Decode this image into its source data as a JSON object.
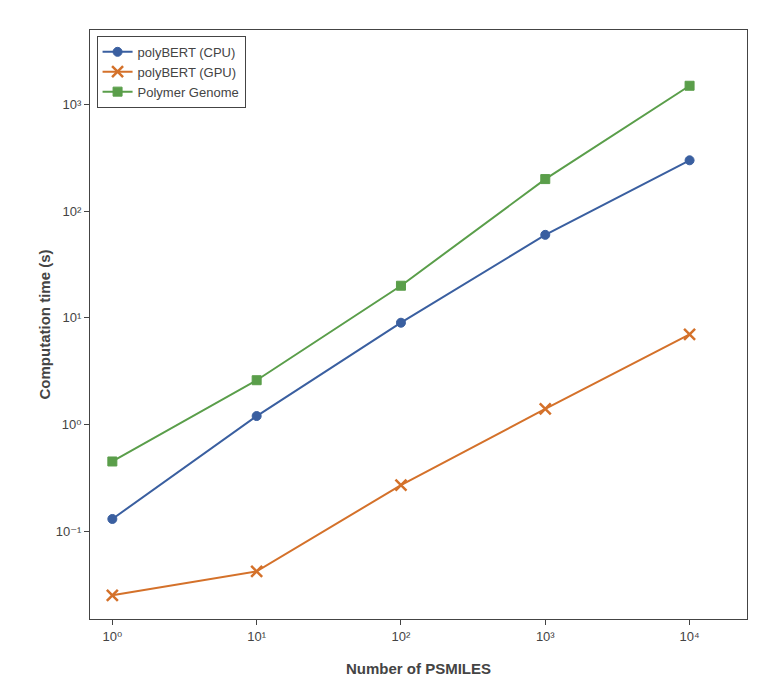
{
  "chart_data": {
    "type": "line",
    "log": true,
    "grid": false,
    "legend": "upper left",
    "xlabel": "Number of PSMILES",
    "ylabel": "Computation time (s)",
    "x": [
      1,
      10,
      100,
      1000,
      10000
    ],
    "series": [
      {
        "name": "polyBERT (CPU)",
        "color": "#3A5FA0",
        "marker": "circle",
        "values": [
          0.13,
          1.2,
          9.0,
          60.0,
          300.0
        ]
      },
      {
        "name": "polyBERT (GPU)",
        "color": "#D4712A",
        "marker": "x",
        "values": [
          0.025,
          0.042,
          0.27,
          1.4,
          7.0
        ]
      },
      {
        "name": "Polymer Genome",
        "color": "#5A9E4A",
        "marker": "square",
        "values": [
          0.45,
          2.6,
          20.0,
          200.0,
          1500.0
        ]
      }
    ],
    "xlim": [
      0.7,
      25000
    ],
    "ylim": [
      0.015,
      5000
    ],
    "xticks": [
      {
        "value": 1,
        "label": "10⁰"
      },
      {
        "value": 10,
        "label": "10¹"
      },
      {
        "value": 100,
        "label": "10²"
      },
      {
        "value": 1000,
        "label": "10³"
      },
      {
        "value": 10000,
        "label": "10⁴"
      }
    ],
    "yticks": [
      {
        "value": 0.1,
        "label": "10⁻¹"
      },
      {
        "value": 1,
        "label": "10⁰"
      },
      {
        "value": 10,
        "label": "10¹"
      },
      {
        "value": 100,
        "label": "10²"
      },
      {
        "value": 1000,
        "label": "10³"
      }
    ]
  }
}
